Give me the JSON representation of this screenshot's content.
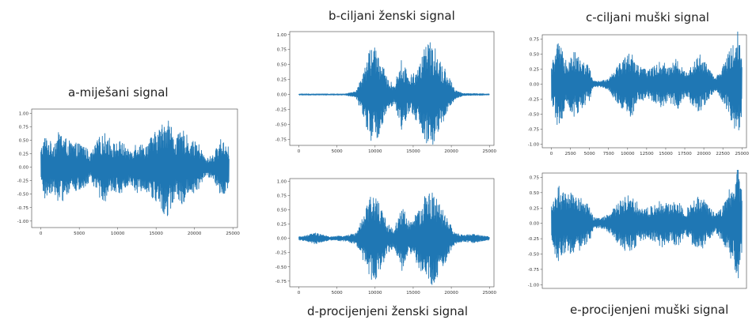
{
  "colors": {
    "signal": "#1f77b4",
    "frame": "#444444"
  },
  "chart_data": [
    {
      "id": "a",
      "type": "line",
      "title": "a-miješani signal",
      "xlabel": "",
      "ylabel": "",
      "xlim": [
        -1200,
        25600
      ],
      "ylim": [
        -1.12,
        1.08
      ],
      "xticks": [
        0,
        5000,
        10000,
        15000,
        20000,
        25000
      ],
      "xtick_labels": [
        "0",
        "5000",
        "10000",
        "15000",
        "20000",
        "25000"
      ],
      "yticks": [
        1.0,
        0.75,
        0.5,
        0.25,
        0.0,
        -0.25,
        -0.5,
        -0.75,
        -1.0
      ],
      "ytick_labels": [
        "1.00",
        "0.75",
        "0.50",
        "0.25",
        "0.00",
        "-0.25",
        "-0.50",
        "-0.75",
        "-1.00"
      ],
      "grid": false,
      "series": [
        {
          "x_range": [
            0,
            24500
          ],
          "envelope": [
            [
              0,
              0.35
            ],
            [
              500,
              0.6
            ],
            [
              1500,
              0.45
            ],
            [
              2500,
              0.7
            ],
            [
              3500,
              0.5
            ],
            [
              4500,
              0.45
            ],
            [
              5500,
              0.45
            ],
            [
              6500,
              0.25
            ],
            [
              7500,
              0.55
            ],
            [
              8500,
              0.65
            ],
            [
              9500,
              0.45
            ],
            [
              10500,
              0.5
            ],
            [
              11500,
              0.3
            ],
            [
              12500,
              0.5
            ],
            [
              13500,
              0.4
            ],
            [
              14500,
              0.6
            ],
            [
              15500,
              0.75
            ],
            [
              16500,
              1.0
            ],
            [
              17500,
              0.55
            ],
            [
              18500,
              0.7
            ],
            [
              19500,
              0.5
            ],
            [
              20500,
              0.45
            ],
            [
              21500,
              0.15
            ],
            [
              22500,
              0.25
            ],
            [
              23500,
              0.55
            ],
            [
              24500,
              0.4
            ]
          ]
        }
      ]
    },
    {
      "id": "b",
      "type": "line",
      "title": "b-ciljani ženski signal",
      "xlabel": "",
      "ylabel": "",
      "xlim": [
        -1200,
        25600
      ],
      "ylim": [
        -0.85,
        1.05
      ],
      "xticks": [
        0,
        5000,
        10000,
        15000,
        20000,
        25000
      ],
      "xtick_labels": [
        "0",
        "5000",
        "10000",
        "15000",
        "20000",
        "25000"
      ],
      "yticks": [
        1.0,
        0.75,
        0.5,
        0.25,
        0.0,
        -0.25,
        -0.5,
        -0.75
      ],
      "ytick_labels": [
        "1.00",
        "0.75",
        "0.50",
        "0.25",
        "0.00",
        "-0.25",
        "-0.50",
        "-0.75"
      ],
      "grid": false,
      "series": [
        {
          "x_range": [
            0,
            25000
          ],
          "envelope": [
            [
              0,
              0.01
            ],
            [
              6000,
              0.01
            ],
            [
              7500,
              0.05
            ],
            [
              8500,
              0.4
            ],
            [
              9500,
              0.85
            ],
            [
              10500,
              0.7
            ],
            [
              11500,
              0.3
            ],
            [
              12500,
              0.15
            ],
            [
              13500,
              0.6
            ],
            [
              14500,
              0.3
            ],
            [
              15500,
              0.45
            ],
            [
              16500,
              0.8
            ],
            [
              17500,
              0.9
            ],
            [
              18500,
              0.6
            ],
            [
              19500,
              0.35
            ],
            [
              20500,
              0.08
            ],
            [
              21500,
              0.02
            ],
            [
              25000,
              0.01
            ]
          ]
        }
      ]
    },
    {
      "id": "c",
      "type": "line",
      "title": "c-ciljani muški signal",
      "xlabel": "",
      "ylabel": "",
      "xlim": [
        -1200,
        25600
      ],
      "ylim": [
        -1.06,
        0.82
      ],
      "xticks": [
        0,
        2500,
        5000,
        7500,
        10000,
        12500,
        15000,
        17500,
        20000,
        22500,
        25000
      ],
      "xtick_labels": [
        "0",
        "2500",
        "5000",
        "7500",
        "10000",
        "12500",
        "15000",
        "17500",
        "20000",
        "22500",
        "25000"
      ],
      "yticks": [
        0.75,
        0.5,
        0.25,
        0.0,
        -0.25,
        -0.5,
        -0.75,
        -1.0
      ],
      "ytick_labels": [
        "0.75",
        "0.50",
        "0.25",
        "0.00",
        "-0.25",
        "-0.50",
        "-0.75",
        "-1.00"
      ],
      "grid": false,
      "series": [
        {
          "x_range": [
            0,
            25000
          ],
          "envelope": [
            [
              0,
              0.3
            ],
            [
              800,
              0.7
            ],
            [
              2000,
              0.45
            ],
            [
              3000,
              0.55
            ],
            [
              4000,
              0.4
            ],
            [
              5000,
              0.3
            ],
            [
              5500,
              0.05
            ],
            [
              6500,
              0.05
            ],
            [
              7500,
              0.1
            ],
            [
              8500,
              0.3
            ],
            [
              9500,
              0.45
            ],
            [
              10500,
              0.55
            ],
            [
              11500,
              0.3
            ],
            [
              12500,
              0.25
            ],
            [
              13500,
              0.3
            ],
            [
              14500,
              0.4
            ],
            [
              15500,
              0.3
            ],
            [
              16500,
              0.45
            ],
            [
              17500,
              0.2
            ],
            [
              18500,
              0.35
            ],
            [
              19500,
              0.5
            ],
            [
              20500,
              0.3
            ],
            [
              21500,
              0.1
            ],
            [
              22500,
              0.3
            ],
            [
              23500,
              0.6
            ],
            [
              24500,
              0.95
            ],
            [
              25000,
              0.5
            ]
          ]
        }
      ]
    },
    {
      "id": "d",
      "type": "line",
      "title": "d-procijenjeni ženski signal",
      "xlabel": "",
      "ylabel": "",
      "xlim": [
        -1200,
        25600
      ],
      "ylim": [
        -0.85,
        1.05
      ],
      "xticks": [
        0,
        5000,
        10000,
        15000,
        20000,
        25000
      ],
      "xtick_labels": [
        "0",
        "5000",
        "10000",
        "15000",
        "20000",
        "25000"
      ],
      "yticks": [
        1.0,
        0.75,
        0.5,
        0.25,
        0.0,
        -0.25,
        -0.5,
        -0.75
      ],
      "ytick_labels": [
        "1.00",
        "0.75",
        "0.50",
        "0.25",
        "0.00",
        "-0.25",
        "-0.50",
        "-0.75"
      ],
      "grid": false,
      "series": [
        {
          "x_range": [
            0,
            25000
          ],
          "envelope": [
            [
              0,
              0.03
            ],
            [
              1000,
              0.05
            ],
            [
              2000,
              0.1
            ],
            [
              3000,
              0.07
            ],
            [
              4000,
              0.03
            ],
            [
              5000,
              0.04
            ],
            [
              6000,
              0.05
            ],
            [
              7500,
              0.1
            ],
            [
              8500,
              0.4
            ],
            [
              9500,
              0.8
            ],
            [
              10500,
              0.65
            ],
            [
              11500,
              0.3
            ],
            [
              12500,
              0.15
            ],
            [
              13500,
              0.6
            ],
            [
              14500,
              0.3
            ],
            [
              15500,
              0.45
            ],
            [
              16500,
              0.75
            ],
            [
              17500,
              0.85
            ],
            [
              18500,
              0.6
            ],
            [
              19500,
              0.35
            ],
            [
              20500,
              0.1
            ],
            [
              21500,
              0.06
            ],
            [
              23000,
              0.08
            ],
            [
              24000,
              0.05
            ],
            [
              25000,
              0.03
            ]
          ]
        }
      ]
    },
    {
      "id": "e",
      "type": "line",
      "title": "e-procijenjeni muški signal",
      "xlabel": "",
      "ylabel": "",
      "xlim": [
        -1200,
        25600
      ],
      "ylim": [
        -1.06,
        0.82
      ],
      "xticks": [],
      "xtick_labels": [],
      "yticks": [
        0.75,
        0.5,
        0.25,
        0.0,
        -0.25,
        -0.5,
        -0.75,
        -1.0
      ],
      "ytick_labels": [
        "0.75",
        "0.50",
        "0.25",
        "0.00",
        "-0.25",
        "-0.50",
        "-0.75",
        "-1.00"
      ],
      "grid": false,
      "series": [
        {
          "x_range": [
            0,
            25000
          ],
          "envelope": [
            [
              0,
              0.3
            ],
            [
              800,
              0.65
            ],
            [
              2000,
              0.45
            ],
            [
              3000,
              0.55
            ],
            [
              4000,
              0.4
            ],
            [
              5000,
              0.3
            ],
            [
              5500,
              0.1
            ],
            [
              6500,
              0.08
            ],
            [
              7500,
              0.15
            ],
            [
              8500,
              0.3
            ],
            [
              9500,
              0.45
            ],
            [
              10500,
              0.5
            ],
            [
              11500,
              0.3
            ],
            [
              12500,
              0.25
            ],
            [
              13500,
              0.3
            ],
            [
              14500,
              0.4
            ],
            [
              15500,
              0.3
            ],
            [
              16500,
              0.4
            ],
            [
              17500,
              0.2
            ],
            [
              18500,
              0.35
            ],
            [
              19500,
              0.5
            ],
            [
              20500,
              0.3
            ],
            [
              21500,
              0.15
            ],
            [
              22500,
              0.3
            ],
            [
              23500,
              0.6
            ],
            [
              24500,
              0.95
            ],
            [
              25000,
              0.5
            ]
          ]
        }
      ]
    }
  ]
}
